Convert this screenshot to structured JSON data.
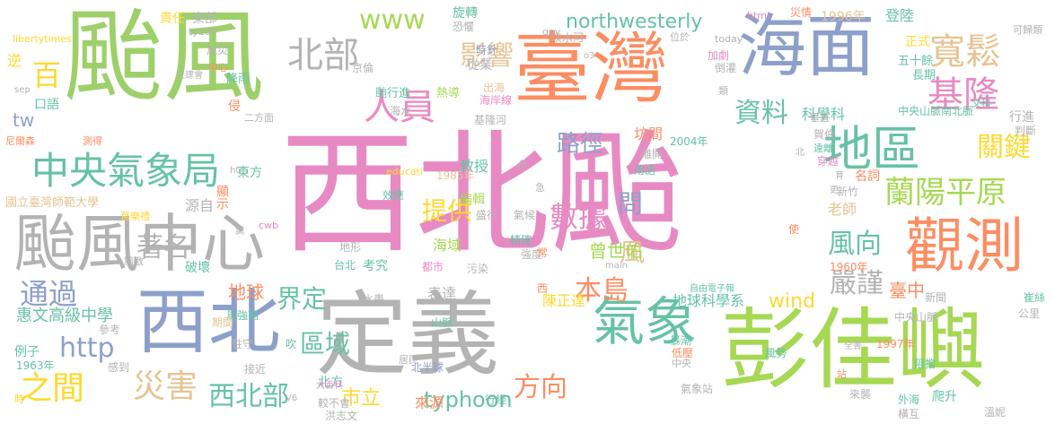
{
  "cloud": {
    "words": [
      {
        "text": "颱風",
        "color": "#9ed06a"
      },
      {
        "text": "西北颱",
        "color": "#e78ac3"
      },
      {
        "text": "臺灣",
        "color": "#fc8d62"
      },
      {
        "text": "海面",
        "color": "#8da0cb"
      },
      {
        "text": "定義",
        "color": "#b3b3b3"
      },
      {
        "text": "彭佳嶼",
        "color": "#a6d854"
      },
      {
        "text": "颱風中心",
        "color": "#b3b3b3"
      },
      {
        "text": "西北",
        "color": "#8da0cb"
      },
      {
        "text": "地區",
        "color": "#66c2a5"
      },
      {
        "text": "觀測",
        "color": "#fc8d62"
      },
      {
        "text": "氣象",
        "color": "#66c2a5"
      },
      {
        "text": "中央氣象局",
        "color": "#66c2a5"
      },
      {
        "text": "寬鬆",
        "color": "#e5c494"
      },
      {
        "text": "北部",
        "color": "#b3b3b3"
      },
      {
        "text": "人員",
        "color": "#e78ac3"
      },
      {
        "text": "基隆",
        "color": "#e78ac3"
      },
      {
        "text": "百",
        "color": "#ffd92f"
      },
      {
        "text": "影響",
        "color": "#e5c494"
      },
      {
        "text": "www",
        "color": "#a6d854"
      },
      {
        "text": "northwesterly",
        "color": "#66c2a5"
      },
      {
        "text": "資料",
        "color": "#66c2a5"
      },
      {
        "text": "路徑",
        "color": "#8da0cb"
      },
      {
        "text": "關鍵",
        "color": "#ffd92f"
      },
      {
        "text": "蘭陽平原",
        "color": "#a6d854"
      },
      {
        "text": "著名",
        "color": "#b3b3b3"
      },
      {
        "text": "通過",
        "color": "#8da0cb"
      },
      {
        "text": "http",
        "color": "#8da0cb"
      },
      {
        "text": "之間",
        "color": "#ffd92f"
      },
      {
        "text": "災害",
        "color": "#e5c494"
      },
      {
        "text": "西北部",
        "color": "#66c2a5"
      },
      {
        "text": "界定",
        "color": "#66c2a5"
      },
      {
        "text": "區域",
        "color": "#66c2a5"
      },
      {
        "text": "提供",
        "color": "#ffd92f"
      },
      {
        "text": "數據",
        "color": "#e78ac3"
      },
      {
        "text": "問",
        "color": "#8da0cb"
      },
      {
        "text": "本島",
        "color": "#fc8d62"
      },
      {
        "text": "方向",
        "color": "#fc8d62"
      },
      {
        "text": "嚴謹",
        "color": "#b3b3b3"
      },
      {
        "text": "風向",
        "color": "#66c2a5"
      },
      {
        "text": "風",
        "color": "#e5c494"
      },
      {
        "text": "臺中",
        "color": "#fc8d62"
      },
      {
        "text": "wind",
        "color": "#ffd92f"
      },
      {
        "text": "typhoon",
        "color": "#66c2a5"
      },
      {
        "text": "市立",
        "color": "#ffd92f"
      },
      {
        "text": "曾世佑",
        "color": "#a6d854"
      },
      {
        "text": "地球",
        "color": "#fc8d62"
      },
      {
        "text": "tw",
        "color": "#8da0cb"
      },
      {
        "text": "惠文高級中學",
        "color": "#66c2a5"
      },
      {
        "text": "國立臺灣師範大學",
        "color": "#e5c494"
      },
      {
        "text": "科學科",
        "color": "#66c2a5"
      },
      {
        "text": "教授",
        "color": "#66c2a5"
      },
      {
        "text": "坊間",
        "color": "#fc8d62"
      },
      {
        "text": "老師",
        "color": "#e5c494"
      },
      {
        "text": "陳正達",
        "color": "#ffd92f"
      },
      {
        "text": "地球科學系",
        "color": "#66c2a5"
      },
      {
        "text": "海域",
        "color": "#a6d854"
      },
      {
        "text": "來源",
        "color": "#fc8d62"
      },
      {
        "text": "北方",
        "color": "#66c2a5"
      },
      {
        "text": "考究",
        "color": "#66c2a5"
      },
      {
        "text": "表達",
        "color": "#b3b3b3"
      },
      {
        "text": "編輯",
        "color": "#a6d854"
      },
      {
        "text": "東方",
        "color": "#66c2a5"
      },
      {
        "text": "源自",
        "color": "#b3b3b3"
      },
      {
        "text": "顯示",
        "color": "#fc8d62"
      },
      {
        "text": "破壞",
        "color": "#66c2a5"
      },
      {
        "text": "口語",
        "color": "#66c2a5"
      },
      {
        "text": "侵",
        "color": "#fc8d62"
      },
      {
        "text": "責任",
        "color": "#ffd92f"
      },
      {
        "text": "東部",
        "color": "#b3b3b3"
      },
      {
        "text": "風災",
        "color": "#b3b3b3"
      },
      {
        "text": "降雨",
        "color": "#66c2a5"
      },
      {
        "text": "旋轉",
        "color": "#66c2a5"
      },
      {
        "text": "恐懼",
        "color": "#b3b3b3"
      },
      {
        "text": "時針",
        "color": "#8da0cb"
      },
      {
        "text": "從業",
        "color": "#b3b3b3"
      },
      {
        "text": "淡水河",
        "color": "#b3b3b3"
      },
      {
        "text": "颱行進",
        "color": "#66c2a5"
      },
      {
        "text": "熱導",
        "color": "#a6d854"
      },
      {
        "text": "海岸線",
        "color": "#e78ac3"
      },
      {
        "text": "出海",
        "color": "#e5c494"
      },
      {
        "text": "基隆河",
        "color": "#b3b3b3"
      },
      {
        "text": "海水",
        "color": "#b3b3b3"
      },
      {
        "text": "1996年",
        "color": "#e5c494"
      },
      {
        "text": "登陸",
        "color": "#66c2a5"
      },
      {
        "text": "正式",
        "color": "#ffd92f"
      },
      {
        "text": "五十餘",
        "color": "#66c2a5"
      },
      {
        "text": "長期",
        "color": "#66c2a5"
      },
      {
        "text": "行進",
        "color": "#b3b3b3"
      },
      {
        "text": "中央山脈南北脈",
        "color": "#66c2a5"
      },
      {
        "text": "判斷",
        "color": "#b3b3b3"
      },
      {
        "text": "名詞",
        "color": "#fc8d62"
      },
      {
        "text": "新竹",
        "color": "#b3b3b3"
      },
      {
        "text": "穿越",
        "color": "#e78ac3"
      },
      {
        "text": "賀伯",
        "color": "#b3b3b3"
      },
      {
        "text": "2004年",
        "color": "#66c2a5"
      },
      {
        "text": "離開",
        "color": "#b3b3b3"
      },
      {
        "text": "用語",
        "color": "#66c2a5"
      },
      {
        "text": "盛行",
        "color": "#b3b3b3"
      },
      {
        "text": "氣候",
        "color": "#b3b3b3"
      },
      {
        "text": "精確",
        "color": "#66c2a5"
      },
      {
        "text": "強度",
        "color": "#b3b3b3"
      },
      {
        "text": "1985年",
        "color": "#e5c494"
      },
      {
        "text": "效應",
        "color": "#66c2a5"
      },
      {
        "text": "地形",
        "color": "#b3b3b3"
      },
      {
        "text": "台北",
        "color": "#66c2a5"
      },
      {
        "text": "都市",
        "color": "#e78ac3"
      },
      {
        "text": "污染",
        "color": "#b3b3b3"
      },
      {
        "text": "水患",
        "color": "#b3b3b3"
      },
      {
        "text": "山脈",
        "color": "#66c2a5"
      },
      {
        "text": "北半球",
        "color": "#8da0cb"
      },
      {
        "text": "行經",
        "color": "#66c2a5"
      },
      {
        "text": "較不會",
        "color": "#b3b3b3"
      },
      {
        "text": "洪志文",
        "color": "#b3b3b3"
      },
      {
        "text": "風強雨",
        "color": "#66c2a5"
      },
      {
        "text": "接近",
        "color": "#b3b3b3"
      },
      {
        "text": "例子",
        "color": "#66c2a5"
      },
      {
        "text": "1963年",
        "color": "#66c2a5"
      },
      {
        "text": "駐守",
        "color": "#b3b3b3"
      },
      {
        "text": "吹",
        "color": "#66c2a5"
      },
      {
        "text": "感到",
        "color": "#b3b3b3"
      },
      {
        "text": "期間",
        "color": "#e5c494"
      },
      {
        "text": "參考",
        "color": "#b3b3b3"
      },
      {
        "text": "暴潮",
        "color": "#66c2a5"
      },
      {
        "text": "低壓",
        "color": "#fc8d62"
      },
      {
        "text": "風勢",
        "color": "#66c2a5"
      },
      {
        "text": "1997年",
        "color": "#fc8d62"
      },
      {
        "text": "中央山脈",
        "color": "#b3b3b3"
      },
      {
        "text": "新聞",
        "color": "#b3b3b3"
      },
      {
        "text": "崔絲",
        "color": "#66c2a5"
      },
      {
        "text": "公里",
        "color": "#b3b3b3"
      },
      {
        "text": "1960年",
        "color": "#fc8d62"
      },
      {
        "text": "阻擋",
        "color": "#66c2a5"
      },
      {
        "text": "氣象站",
        "color": "#b3b3b3"
      },
      {
        "text": "外海",
        "color": "#66c2a5"
      },
      {
        "text": "爬升",
        "color": "#66c2a5"
      },
      {
        "text": "橫互",
        "color": "#b3b3b3"
      },
      {
        "text": "溫妮",
        "color": "#b3b3b3"
      },
      {
        "text": "來襲",
        "color": "#b3b3b3"
      },
      {
        "text": "全書",
        "color": "#b3b3b3"
      },
      {
        "text": "自由電子報",
        "color": "#66c2a5"
      },
      {
        "text": "大百科",
        "color": "#e78ac3"
      },
      {
        "text": "libertytimes",
        "color": "#ffd92f"
      },
      {
        "text": "ty100",
        "color": "#b3b3b3"
      },
      {
        "text": "educati",
        "color": "#ffd92f"
      },
      {
        "text": "cwb",
        "color": "#e78ac3"
      },
      {
        "text": "gov",
        "color": "#b3b3b3"
      },
      {
        "text": "html",
        "color": "#e78ac3"
      },
      {
        "text": "today",
        "color": "#b3b3b3"
      },
      {
        "text": "main",
        "color": "#b3b3b3"
      },
      {
        "text": "htm",
        "color": "#b3b3b3"
      },
      {
        "text": "sep",
        "color": "#b3b3b3"
      },
      {
        "text": "V6",
        "color": "#b3b3b3"
      },
      {
        "text": "o3",
        "color": "#b3b3b3"
      },
      {
        "text": "文建會",
        "color": "#b3b3b3"
      },
      {
        "text": "台",
        "color": "#b3b3b3"
      },
      {
        "text": "西",
        "color": "#fc8d62"
      },
      {
        "text": "常",
        "color": "#fc8d62"
      },
      {
        "text": "急",
        "color": "#b3b3b3"
      },
      {
        "text": "逆",
        "color": "#ffd92f"
      },
      {
        "text": "中心",
        "color": "#fc8d62"
      },
      {
        "text": "京倫",
        "color": "#b3b3b3"
      },
      {
        "text": "二方面",
        "color": "#b3b3b3"
      },
      {
        "text": "尼爾森",
        "color": "#fc8d62"
      },
      {
        "text": "測得",
        "color": "#fc8d62"
      },
      {
        "text": "葛樂禮",
        "color": "#ffd92f"
      },
      {
        "text": "黯散",
        "color": "#b3b3b3"
      },
      {
        "text": "災情",
        "color": "#fc8d62"
      },
      {
        "text": "可歸類",
        "color": "#b3b3b3"
      },
      {
        "text": "加劇",
        "color": "#e78ac3"
      },
      {
        "text": "倒灌",
        "color": "#b3b3b3"
      },
      {
        "text": "類",
        "color": "#b3b3b3"
      },
      {
        "text": "文科",
        "color": "#66c2a5"
      },
      {
        "text": "垂直",
        "color": "#b3b3b3"
      },
      {
        "text": "遠離",
        "color": "#66c2a5"
      },
      {
        "text": "使",
        "color": "#fc8d62"
      },
      {
        "text": "位於",
        "color": "#b3b3b3"
      },
      {
        "text": "站",
        "color": "#fc8d62"
      },
      {
        "text": "居民",
        "color": "#b3b3b3"
      },
      {
        "text": "時",
        "color": "#ffd92f"
      },
      {
        "text": "中央",
        "color": "#b3b3b3"
      },
      {
        "text": "北",
        "color": "#b3b3b3"
      },
      {
        "text": "更",
        "color": "#b3b3b3"
      },
      {
        "text": "育",
        "color": "#b3b3b3"
      },
      {
        "text": "調",
        "color": "#b3b3b3"
      }
    ]
  }
}
